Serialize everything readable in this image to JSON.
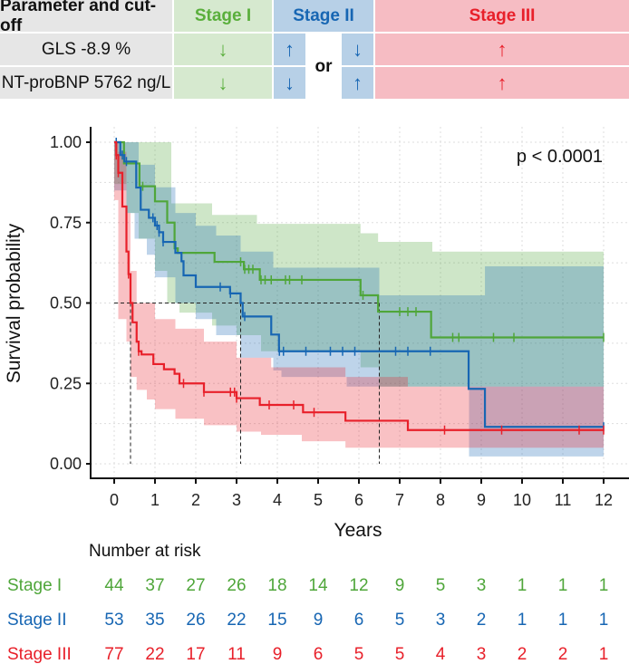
{
  "criteria_table": {
    "header": {
      "parameter": "Parameter and cut-off",
      "stage1": "Stage I",
      "stage2": "Stage II",
      "stage3": "Stage III"
    },
    "rows": [
      {
        "parameter": "GLS -8.9 %",
        "stage1": "↓",
        "stage2a": "↑",
        "stage2b": "↓",
        "stage3": "↑"
      },
      {
        "parameter": "NT-proBNP 5762 ng/L",
        "stage1": "↓",
        "stage2a": "↓",
        "stage2b": "↑",
        "stage3": "↑"
      }
    ],
    "or_label": "or"
  },
  "colors": {
    "stage1": "#5aaf3c",
    "stage2": "#1766b3",
    "stage3": "#e8202a",
    "stage1_bg": "#d6e9cf",
    "stage2_bg": "#b7d0e7",
    "stage3_bg": "#f6bcc3",
    "param_bg": "#e6e6e6"
  },
  "chart_data": {
    "type": "line",
    "subtype": "kaplan-meier step",
    "xlabel": "Years",
    "ylabel": "Survival probability",
    "xlim": [
      0,
      12
    ],
    "ylim": [
      0,
      1
    ],
    "xticks": [
      "0",
      "1",
      "2",
      "3",
      "4",
      "5",
      "6",
      "7",
      "8",
      "9",
      "10",
      "11",
      "12"
    ],
    "yticks": [
      "0.00",
      "0.25",
      "0.50",
      "0.75",
      "1.00"
    ],
    "grid": true,
    "annotation": "p < 0.0001",
    "median_times": [
      0.4,
      3.1,
      6.5
    ],
    "series": [
      {
        "name": "Stage I",
        "color": "#4fa63a",
        "steps": [
          [
            0,
            1
          ],
          [
            0.24,
            0.934
          ],
          [
            0.62,
            0.863
          ],
          [
            1.0,
            0.816
          ],
          [
            1.3,
            0.75
          ],
          [
            1.48,
            0.67
          ],
          [
            1.56,
            0.656
          ],
          [
            2.46,
            0.628
          ],
          [
            3.18,
            0.605
          ],
          [
            3.57,
            0.572
          ],
          [
            6.04,
            0.524
          ],
          [
            6.47,
            0.473
          ],
          [
            7.77,
            0.393
          ],
          [
            12,
            0.393
          ]
        ],
        "upper": [
          [
            0,
            1
          ],
          [
            1.4,
            0.81
          ],
          [
            2.4,
            0.774
          ],
          [
            3.5,
            0.746
          ],
          [
            6.04,
            0.717
          ],
          [
            6.47,
            0.69
          ],
          [
            7.8,
            0.66
          ],
          [
            12,
            0.66
          ]
        ],
        "lower": [
          [
            0,
            1
          ],
          [
            0.3,
            0.87
          ],
          [
            0.6,
            0.78
          ],
          [
            1.0,
            0.7
          ],
          [
            1.3,
            0.6
          ],
          [
            1.6,
            0.5
          ],
          [
            2.4,
            0.47
          ],
          [
            3.0,
            0.43
          ],
          [
            3.6,
            0.4
          ],
          [
            6.04,
            0.35
          ],
          [
            6.5,
            0.3
          ],
          [
            7.77,
            0.24
          ],
          [
            12,
            0.24
          ]
        ],
        "censored": [
          0.7,
          1.5,
          3.1,
          3.2,
          3.3,
          3.4,
          3.6,
          3.7,
          3.85,
          4.2,
          4.3,
          4.6,
          6.1,
          7.0,
          7.2,
          7.4,
          8.3,
          8.45,
          9.3,
          9.8,
          12
        ]
      },
      {
        "name": "Stage II",
        "color": "#1766b3",
        "steps": [
          [
            0,
            1
          ],
          [
            0.15,
            0.96
          ],
          [
            0.25,
            0.94
          ],
          [
            0.54,
            0.859
          ],
          [
            0.65,
            0.79
          ],
          [
            0.85,
            0.765
          ],
          [
            1.0,
            0.741
          ],
          [
            1.1,
            0.72
          ],
          [
            1.2,
            0.69
          ],
          [
            1.5,
            0.656
          ],
          [
            1.65,
            0.63
          ],
          [
            1.7,
            0.586
          ],
          [
            2.0,
            0.55
          ],
          [
            2.84,
            0.53
          ],
          [
            3.1,
            0.5
          ],
          [
            3.15,
            0.458
          ],
          [
            3.85,
            0.402
          ],
          [
            4.04,
            0.35
          ],
          [
            8.69,
            0.233
          ],
          [
            9.09,
            0.115
          ],
          [
            12,
            0.115
          ]
        ],
        "upper": [
          [
            0,
            1
          ],
          [
            0.5,
            1
          ],
          [
            0.6,
            0.93
          ],
          [
            1.0,
            0.86
          ],
          [
            1.5,
            0.78
          ],
          [
            2.0,
            0.74
          ],
          [
            2.5,
            0.71
          ],
          [
            3.1,
            0.66
          ],
          [
            3.9,
            0.61
          ],
          [
            6.04,
            0.61
          ],
          [
            6.5,
            0.524
          ],
          [
            8.7,
            0.524
          ],
          [
            9.09,
            0.614
          ],
          [
            12,
            0.614
          ]
        ],
        "lower": [
          [
            0,
            1
          ],
          [
            0.3,
            0.85
          ],
          [
            0.5,
            0.78
          ],
          [
            0.8,
            0.7
          ],
          [
            1.0,
            0.65
          ],
          [
            1.5,
            0.58
          ],
          [
            2.0,
            0.5
          ],
          [
            2.5,
            0.45
          ],
          [
            3.1,
            0.4
          ],
          [
            3.9,
            0.33
          ],
          [
            4.1,
            0.29
          ],
          [
            5.7,
            0.27
          ],
          [
            8.7,
            0.24
          ],
          [
            9.09,
            0.023
          ],
          [
            12,
            0.023
          ]
        ],
        "censored": [
          0.05,
          0.2,
          0.3,
          0.95,
          1.05,
          1.1,
          1.2,
          2.6,
          2.85,
          3.2,
          4.05,
          4.15,
          4.7,
          5.3,
          5.6,
          5.9,
          6.9,
          7.2,
          7.75,
          12
        ]
      },
      {
        "name": "Stage III",
        "color": "#e8202a",
        "steps": [
          [
            0,
            1
          ],
          [
            0.05,
            0.96
          ],
          [
            0.1,
            0.905
          ],
          [
            0.2,
            0.8
          ],
          [
            0.3,
            0.66
          ],
          [
            0.35,
            0.59
          ],
          [
            0.4,
            0.5
          ],
          [
            0.45,
            0.44
          ],
          [
            0.55,
            0.38
          ],
          [
            0.6,
            0.35
          ],
          [
            0.67,
            0.34
          ],
          [
            0.96,
            0.31
          ],
          [
            1.22,
            0.294
          ],
          [
            1.48,
            0.28
          ],
          [
            1.6,
            0.25
          ],
          [
            2.2,
            0.223
          ],
          [
            3.0,
            0.204
          ],
          [
            3.57,
            0.183
          ],
          [
            4.63,
            0.16
          ],
          [
            5.67,
            0.134
          ],
          [
            7.2,
            0.105
          ],
          [
            12,
            0.105
          ]
        ],
        "upper": [
          [
            0,
            1
          ],
          [
            0.1,
            0.97
          ],
          [
            0.3,
            0.78
          ],
          [
            0.4,
            0.6
          ],
          [
            0.55,
            0.5
          ],
          [
            1.0,
            0.45
          ],
          [
            1.5,
            0.42
          ],
          [
            2.2,
            0.38
          ],
          [
            3.0,
            0.33
          ],
          [
            3.85,
            0.3
          ],
          [
            5.67,
            0.27
          ],
          [
            7.2,
            0.24
          ],
          [
            12,
            0.24
          ]
        ],
        "lower": [
          [
            0,
            1
          ],
          [
            0.1,
            0.82
          ],
          [
            0.3,
            0.45
          ],
          [
            0.4,
            0.38
          ],
          [
            0.55,
            0.27
          ],
          [
            0.8,
            0.23
          ],
          [
            1.0,
            0.2
          ],
          [
            1.5,
            0.17
          ],
          [
            2.2,
            0.14
          ],
          [
            3.0,
            0.12
          ],
          [
            3.6,
            0.1
          ],
          [
            4.6,
            0.09
          ],
          [
            5.67,
            0.07
          ],
          [
            7.2,
            0.05
          ],
          [
            12,
            0.05
          ]
        ],
        "censored": [
          0.05,
          0.1,
          0.35,
          0.6,
          1.7,
          2.2,
          2.85,
          2.95,
          3.0,
          3.8,
          4.4,
          4.9,
          8.1,
          9.5,
          11.4,
          12
        ]
      }
    ],
    "risk_table": {
      "title": "Number at risk",
      "rows": [
        {
          "label": "Stage I",
          "values": [
            "44",
            "37",
            "27",
            "26",
            "18",
            "14",
            "12",
            "9",
            "5",
            "3",
            "1",
            "1",
            "1"
          ]
        },
        {
          "label": "Stage II",
          "values": [
            "53",
            "35",
            "26",
            "22",
            "15",
            "9",
            "6",
            "5",
            "3",
            "2",
            "1",
            "1",
            "1"
          ]
        },
        {
          "label": "Stage III",
          "values": [
            "77",
            "22",
            "17",
            "11",
            "9",
            "6",
            "5",
            "5",
            "4",
            "3",
            "2",
            "2",
            "1"
          ]
        }
      ]
    }
  }
}
